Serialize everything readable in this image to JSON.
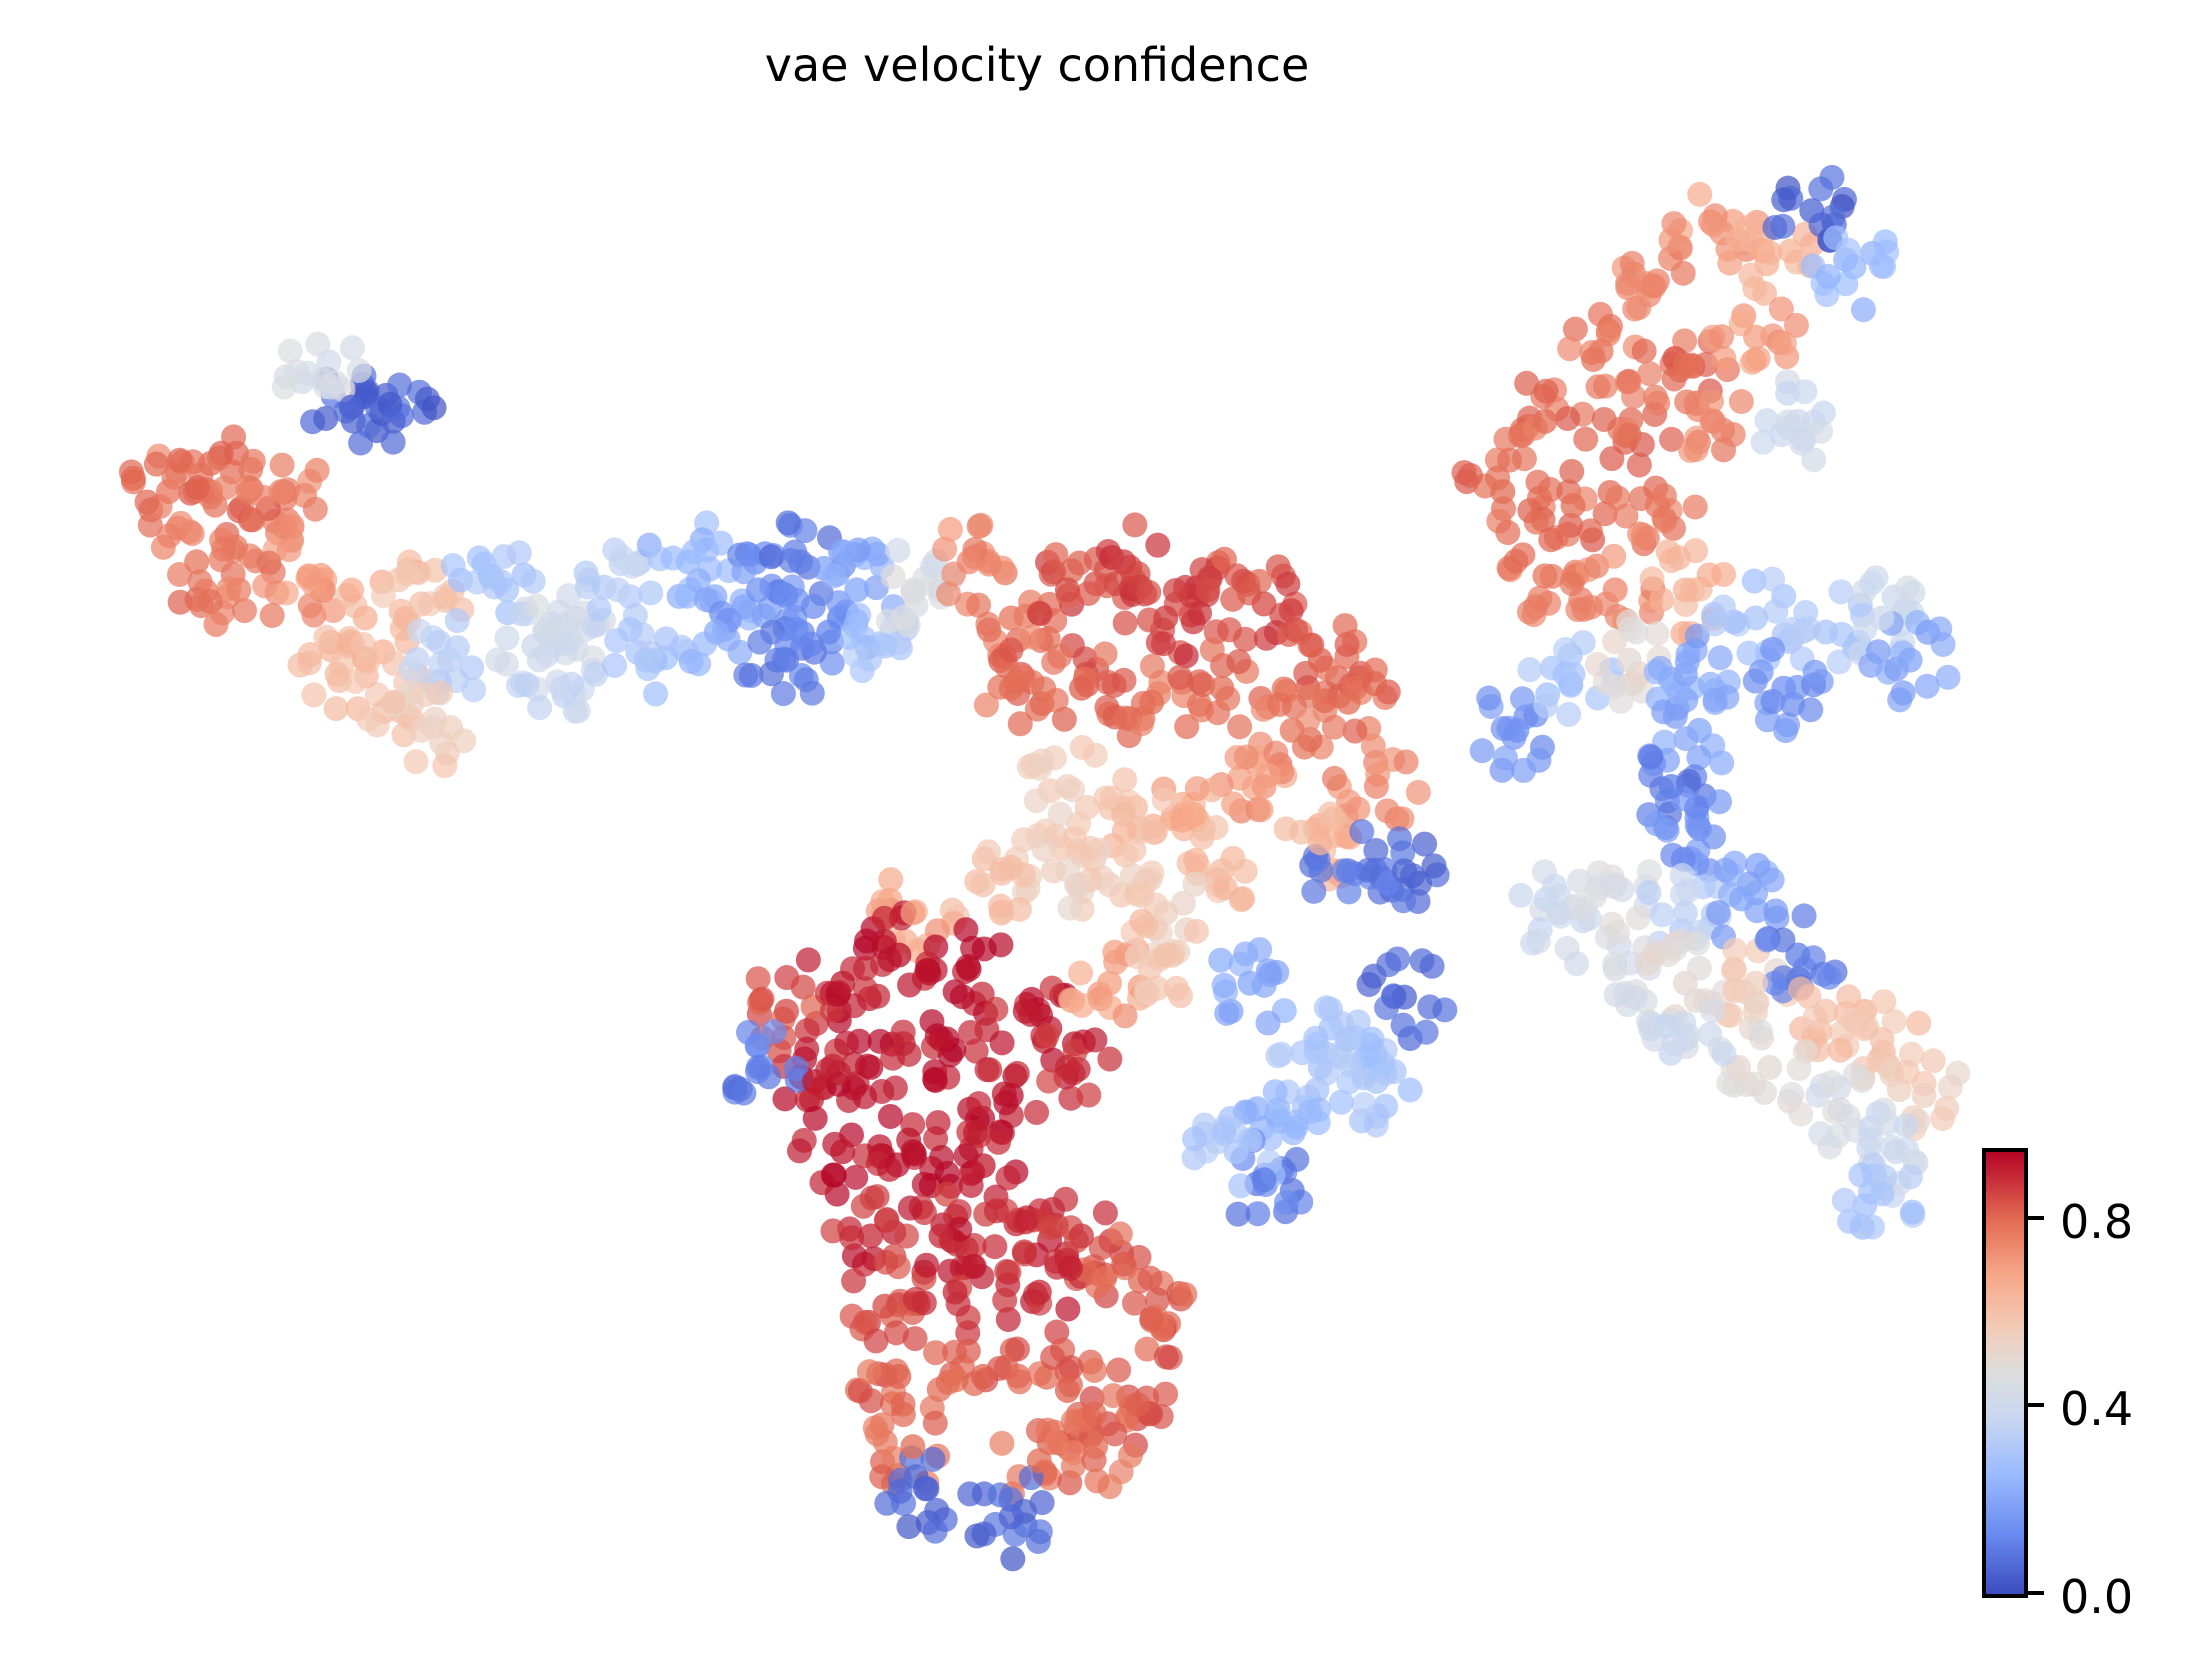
{
  "chart_data": {
    "type": "scatter",
    "title": "vae velocity confidence",
    "xlabel": "",
    "ylabel": "",
    "axes_visible": false,
    "grid": false,
    "colormap": "coolwarm",
    "colorbar": {
      "range": [
        0.0,
        0.95
      ],
      "ticks": [
        "0.0",
        "0.4",
        "0.8"
      ],
      "tick_values": [
        0.0,
        0.4,
        0.8
      ],
      "placement": "bottom-right"
    },
    "xlim": [
      0,
      15.6
    ],
    "ylim": [
      0,
      11.9
    ],
    "points_note": "representative sample [x, y, confidence]",
    "points": [
      [
        1.2,
        8.4,
        0.78
      ],
      [
        1.5,
        8.6,
        0.8
      ],
      [
        1.8,
        8.2,
        0.8
      ],
      [
        1.4,
        7.9,
        0.78
      ],
      [
        2.0,
        8.4,
        0.75
      ],
      [
        2.2,
        7.8,
        0.72
      ],
      [
        1.7,
        7.7,
        0.76
      ],
      [
        2.5,
        9.0,
        0.05
      ],
      [
        2.8,
        8.9,
        0.05
      ],
      [
        2.3,
        9.2,
        0.45
      ],
      [
        2.6,
        7.5,
        0.65
      ],
      [
        2.4,
        7.1,
        0.62
      ],
      [
        2.8,
        6.9,
        0.6
      ],
      [
        3.0,
        7.6,
        0.6
      ],
      [
        3.2,
        7.2,
        0.35
      ],
      [
        3.0,
        6.7,
        0.55
      ],
      [
        3.5,
        7.8,
        0.3
      ],
      [
        3.8,
        7.3,
        0.4
      ],
      [
        4.1,
        7.5,
        0.42
      ],
      [
        4.0,
        7.0,
        0.38
      ],
      [
        4.4,
        7.7,
        0.35
      ],
      [
        4.6,
        7.2,
        0.3
      ],
      [
        4.9,
        7.9,
        0.25
      ],
      [
        5.1,
        7.4,
        0.22
      ],
      [
        5.4,
        7.7,
        0.15
      ],
      [
        5.7,
        7.9,
        0.1
      ],
      [
        5.9,
        7.4,
        0.12
      ],
      [
        5.6,
        7.2,
        0.1
      ],
      [
        6.1,
        7.7,
        0.2
      ],
      [
        6.3,
        7.3,
        0.3
      ],
      [
        6.5,
        7.7,
        0.45
      ],
      [
        6.9,
        7.9,
        0.75
      ],
      [
        7.2,
        7.5,
        0.78
      ],
      [
        7.6,
        7.7,
        0.85
      ],
      [
        8.0,
        7.9,
        0.87
      ],
      [
        8.3,
        7.5,
        0.87
      ],
      [
        8.6,
        7.7,
        0.85
      ],
      [
        9.0,
        7.6,
        0.85
      ],
      [
        9.4,
        7.2,
        0.82
      ],
      [
        9.6,
        6.9,
        0.8
      ],
      [
        7.2,
        7.0,
        0.8
      ],
      [
        7.7,
        7.0,
        0.82
      ],
      [
        8.2,
        6.9,
        0.8
      ],
      [
        8.7,
        7.0,
        0.8
      ],
      [
        9.2,
        6.7,
        0.78
      ],
      [
        9.8,
        6.3,
        0.75
      ],
      [
        9.0,
        6.3,
        0.72
      ],
      [
        8.5,
        6.1,
        0.68
      ],
      [
        8.0,
        6.1,
        0.62
      ],
      [
        7.6,
        6.3,
        0.55
      ],
      [
        9.4,
        5.9,
        0.65
      ],
      [
        8.7,
        5.7,
        0.62
      ],
      [
        10.0,
        5.7,
        0.05
      ],
      [
        9.6,
        5.7,
        0.1
      ],
      [
        8.3,
        5.4,
        0.55
      ],
      [
        7.9,
        5.6,
        0.55
      ],
      [
        7.5,
        5.7,
        0.55
      ],
      [
        7.0,
        5.6,
        0.6
      ],
      [
        6.5,
        5.4,
        0.7
      ],
      [
        5.6,
        4.7,
        0.85
      ],
      [
        6.0,
        4.9,
        0.92
      ],
      [
        6.4,
        5.1,
        0.93
      ],
      [
        6.9,
        5.0,
        0.93
      ],
      [
        7.3,
        4.7,
        0.92
      ],
      [
        5.8,
        4.2,
        0.92
      ],
      [
        6.2,
        4.3,
        0.93
      ],
      [
        6.7,
        4.5,
        0.93
      ],
      [
        7.2,
        4.1,
        0.93
      ],
      [
        7.6,
        4.3,
        0.9
      ],
      [
        6.0,
        3.7,
        0.92
      ],
      [
        6.5,
        3.7,
        0.93
      ],
      [
        7.0,
        3.6,
        0.92
      ],
      [
        6.2,
        3.1,
        0.9
      ],
      [
        6.7,
        3.1,
        0.9
      ],
      [
        7.3,
        3.2,
        0.9
      ],
      [
        7.7,
        3.1,
        0.88
      ],
      [
        8.0,
        2.9,
        0.83
      ],
      [
        8.2,
        2.5,
        0.82
      ],
      [
        6.3,
        2.6,
        0.85
      ],
      [
        6.8,
        2.7,
        0.9
      ],
      [
        7.4,
        2.7,
        0.9
      ],
      [
        6.4,
        2.1,
        0.82
      ],
      [
        7.0,
        2.1,
        0.82
      ],
      [
        7.6,
        2.0,
        0.82
      ],
      [
        8.1,
        1.9,
        0.82
      ],
      [
        6.5,
        1.6,
        0.8
      ],
      [
        7.4,
        1.5,
        0.8
      ],
      [
        7.8,
        1.6,
        0.8
      ],
      [
        6.6,
        1.3,
        0.05
      ],
      [
        7.2,
        1.1,
        0.05
      ],
      [
        7.9,
        4.9,
        0.7
      ],
      [
        8.3,
        5.1,
        0.6
      ],
      [
        5.4,
        4.3,
        0.1
      ],
      [
        8.9,
        4.9,
        0.2
      ],
      [
        9.4,
        4.3,
        0.3
      ],
      [
        9.8,
        4.2,
        0.3
      ],
      [
        9.6,
        4.5,
        0.3
      ],
      [
        9.1,
        4.0,
        0.25
      ],
      [
        9.0,
        3.5,
        0.1
      ],
      [
        10.0,
        4.8,
        0.05
      ],
      [
        8.8,
        3.7,
        0.3
      ],
      [
        12.2,
        10.3,
        0.72
      ],
      [
        11.8,
        9.9,
        0.75
      ],
      [
        12.6,
        10.1,
        0.65
      ],
      [
        12.9,
        10.4,
        0.05
      ],
      [
        13.2,
        10.0,
        0.25
      ],
      [
        11.4,
        9.4,
        0.78
      ],
      [
        12.0,
        9.3,
        0.8
      ],
      [
        12.5,
        9.5,
        0.7
      ],
      [
        11.0,
        8.9,
        0.8
      ],
      [
        11.6,
        8.8,
        0.8
      ],
      [
        12.2,
        8.9,
        0.75
      ],
      [
        10.7,
        8.4,
        0.8
      ],
      [
        11.2,
        8.3,
        0.8
      ],
      [
        11.8,
        8.3,
        0.78
      ],
      [
        11.0,
        7.8,
        0.78
      ],
      [
        11.5,
        7.7,
        0.75
      ],
      [
        12.0,
        7.7,
        0.65
      ],
      [
        12.8,
        8.9,
        0.4
      ],
      [
        10.8,
        6.7,
        0.15
      ],
      [
        11.2,
        7.1,
        0.3
      ],
      [
        11.6,
        7.2,
        0.5
      ],
      [
        12.0,
        7.1,
        0.2
      ],
      [
        12.5,
        7.5,
        0.3
      ],
      [
        13.0,
        7.4,
        0.3
      ],
      [
        13.4,
        7.5,
        0.4
      ],
      [
        13.6,
        7.2,
        0.2
      ],
      [
        12.1,
        6.7,
        0.2
      ],
      [
        12.7,
        7.0,
        0.15
      ],
      [
        11.9,
        6.3,
        0.1
      ],
      [
        12.1,
        6.0,
        0.15
      ],
      [
        11.1,
        5.4,
        0.4
      ],
      [
        11.5,
        5.6,
        0.45
      ],
      [
        12.0,
        5.4,
        0.35
      ],
      [
        12.4,
        5.5,
        0.2
      ],
      [
        11.5,
        5.0,
        0.45
      ],
      [
        12.0,
        4.9,
        0.5
      ],
      [
        12.5,
        4.9,
        0.55
      ],
      [
        12.8,
        5.1,
        0.1
      ],
      [
        13.0,
        4.7,
        0.6
      ],
      [
        13.4,
        4.5,
        0.6
      ],
      [
        13.7,
        4.1,
        0.55
      ],
      [
        12.6,
        4.3,
        0.5
      ],
      [
        13.1,
        4.0,
        0.45
      ],
      [
        13.5,
        3.7,
        0.4
      ],
      [
        13.4,
        3.4,
        0.3
      ],
      [
        12.0,
        4.5,
        0.4
      ]
    ]
  }
}
